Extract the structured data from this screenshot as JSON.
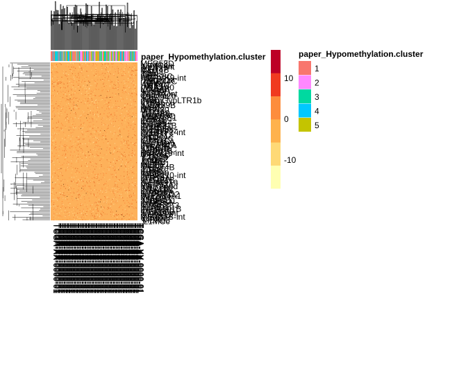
{
  "chart_data": {
    "type": "heatmap",
    "annotation": {
      "title": "paper_Hypomethylation.cluster",
      "levels": [
        "1",
        "2",
        "3",
        "4",
        "5"
      ],
      "colors": [
        "#F8766D",
        "#FF88FF",
        "#00D9A0",
        "#00C8FF",
        "#C4C400"
      ]
    },
    "color_scale": {
      "ticks": [
        "10",
        "0",
        "-10"
      ],
      "tick_values": [
        10,
        0,
        -10
      ],
      "range": [
        -17,
        17
      ],
      "colors": [
        "#FFFFB2",
        "#FED976",
        "#FEB24C",
        "#FD8D3C",
        "#F03B20",
        "#BD0026"
      ]
    },
    "row_labels": [
      "MER58D",
      "L1MC4a",
      "MLT1-int",
      "LTR37",
      "MER4B",
      "FAM",
      "L2b",
      "MIR3",
      "L1ME3C",
      "HERVK9-int",
      "Tigger1a",
      "MER44C",
      "L1PA7",
      "AluYm1",
      "THE1C",
      "MLT1A0",
      "L1ME5",
      "MER5A",
      "L1MEf",
      "MSTA-int",
      "Charlie2b",
      "MER94",
      "L3b",
      "MamGypLTR1b",
      "LTR9",
      "L1P4b",
      "MER39B",
      "L1M2",
      "HAL1",
      "MER20",
      "AluSg",
      "L1MA9",
      "Tigger3a",
      "MER63C",
      "LTR16E1",
      "MIRb",
      "L1PB2",
      "MLT2B4",
      "LTR33",
      "MER31B",
      "L1ME4a",
      "MER96",
      "Charlie4z",
      "MLT1F2-int",
      "L1MB3",
      "MER112",
      "AluJr",
      "LTR12C",
      "L1MD1",
      "MER45A",
      "L1_Mam",
      "MER41A",
      "LTR41B",
      "L1MCb",
      "MER67C",
      "L1PA16",
      "HERV16-int",
      "MER6C",
      "L1MB5",
      "LTR78",
      "Tigger2",
      "L1M5",
      "MER3",
      "L1ME1",
      "MLT1L",
      "MER74B",
      "L1P2",
      "LTR8",
      "L1MC1",
      "MER90",
      "MER110-int",
      "L1HS",
      "LTR10A",
      "MER21B",
      "Charlie1a",
      "L1PA3",
      "MER52A",
      "L2c_3end",
      "MLT1D",
      "LTR1A1",
      "L1MA4A",
      "MER11B",
      "L1PREC2",
      "MER34A1",
      "MLT2A1",
      "L1M4c",
      "MER4D1",
      "LTR13A",
      "L1MB8",
      "MER57E3",
      "L1MDa",
      "MER101B",
      "L1_Hsa",
      "MER65B",
      "LTR49-int",
      "L1PA12",
      "MER83B-int",
      "L1ME2",
      "MER53",
      "L1MCc"
    ]
  }
}
